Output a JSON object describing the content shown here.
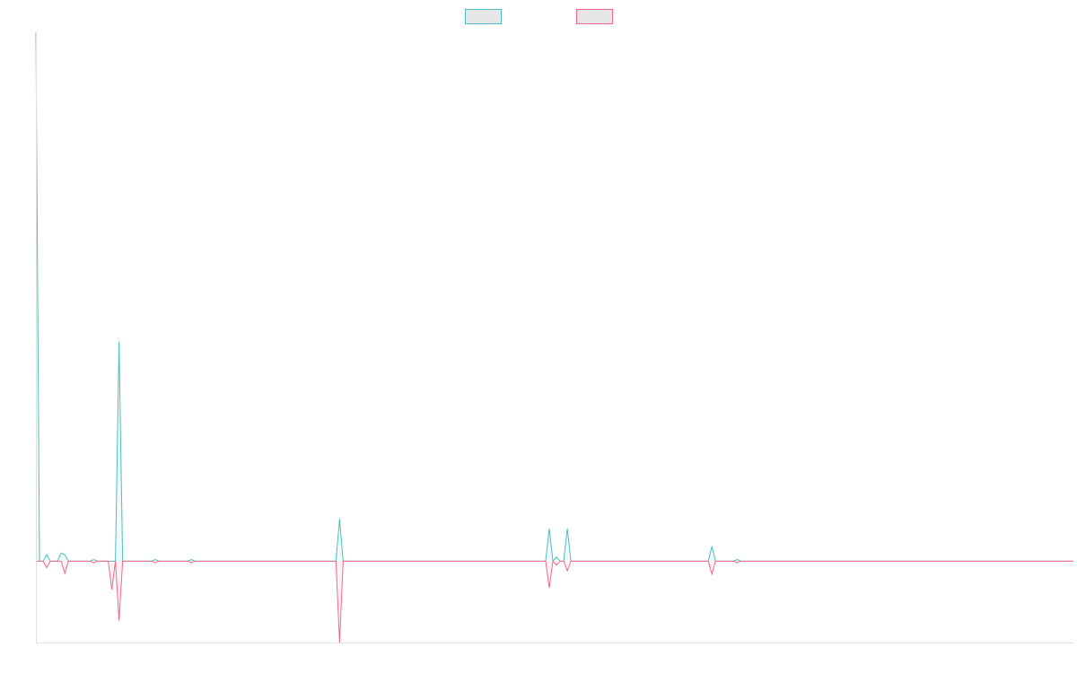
{
  "chart_data": {
    "type": "area",
    "title": "",
    "xlabel": "",
    "ylabel": "",
    "legend": {
      "position": "top-center"
    },
    "grid": false,
    "x": [
      0,
      1,
      2,
      3,
      4,
      5,
      6,
      7,
      8,
      9,
      10,
      11,
      12,
      13,
      14,
      15,
      16,
      17,
      18,
      19,
      20,
      21,
      22,
      23,
      24,
      25,
      26,
      27,
      28,
      29,
      30,
      31,
      32,
      33,
      34,
      35,
      36,
      37,
      38,
      39,
      40,
      41,
      42,
      43,
      44,
      45,
      46,
      47,
      48,
      49,
      50,
      51,
      52,
      53,
      54,
      55,
      56,
      57,
      58,
      59,
      60,
      61,
      62,
      63,
      64,
      65,
      66,
      67,
      68,
      69,
      70,
      71,
      72,
      73,
      74,
      75,
      76,
      77,
      78,
      79,
      80,
      81,
      82,
      83,
      84,
      85,
      86,
      87,
      88,
      89,
      90,
      91,
      92,
      93,
      94,
      95,
      96,
      97,
      98,
      99,
      100,
      101,
      102,
      103,
      104,
      105,
      106,
      107,
      108,
      109,
      110,
      111,
      112,
      113,
      114,
      115,
      116,
      117,
      118,
      119,
      120,
      121,
      122,
      123,
      124,
      125,
      126,
      127,
      128,
      129,
      130,
      131,
      132,
      133,
      134,
      135,
      136,
      137,
      138,
      139,
      140,
      141,
      142,
      143,
      144,
      145,
      146,
      147,
      148,
      149,
      150,
      151,
      152,
      153,
      154,
      155,
      156,
      157,
      158,
      159,
      160,
      161,
      162,
      163,
      164,
      165,
      166,
      167,
      168,
      169,
      170,
      171,
      172,
      173,
      174,
      175,
      176,
      177,
      178,
      179,
      180,
      181,
      182,
      183,
      184,
      185,
      186,
      187,
      188,
      189,
      190,
      191,
      192,
      193,
      194,
      195,
      196,
      197,
      198,
      199,
      200,
      201,
      202,
      203,
      204,
      205,
      206,
      207,
      208,
      209,
      210,
      211,
      212,
      213,
      214,
      215,
      216,
      217,
      218,
      219,
      220,
      221,
      222,
      223,
      224,
      225,
      226,
      227,
      228,
      229,
      230,
      231,
      232,
      233,
      234,
      235,
      236,
      237,
      238,
      239,
      240,
      241,
      242,
      243,
      244,
      245,
      246,
      247,
      248,
      249,
      250,
      251,
      252,
      253,
      254,
      255,
      256,
      257,
      258,
      259,
      260,
      261,
      262,
      263,
      264,
      265,
      266,
      267,
      268,
      269,
      270,
      271,
      272,
      273,
      274,
      275,
      276,
      277,
      278,
      279,
      280,
      281,
      282,
      283,
      284,
      285,
      286,
      287
    ],
    "ylim": [
      -100,
      650
    ],
    "series": [
      {
        "name": "",
        "color": "#4bc0c0",
        "values": [
          650,
          0,
          0,
          8,
          0,
          0,
          0,
          10,
          8,
          0,
          0,
          0,
          0,
          0,
          0,
          0,
          2,
          0,
          0,
          0,
          0,
          0,
          0,
          270,
          0,
          0,
          0,
          0,
          0,
          0,
          0,
          0,
          0,
          2,
          0,
          0,
          0,
          0,
          0,
          0,
          0,
          0,
          0,
          2,
          0,
          0,
          0,
          0,
          0,
          0,
          0,
          0,
          0,
          0,
          0,
          0,
          0,
          0,
          0,
          0,
          0,
          0,
          0,
          0,
          0,
          0,
          0,
          0,
          0,
          0,
          0,
          0,
          0,
          0,
          0,
          0,
          0,
          0,
          0,
          0,
          0,
          0,
          0,
          0,
          52,
          0,
          0,
          0,
          0,
          0,
          0,
          0,
          0,
          0,
          0,
          0,
          0,
          0,
          0,
          0,
          0,
          0,
          0,
          0,
          0,
          0,
          0,
          0,
          0,
          0,
          0,
          0,
          0,
          0,
          0,
          0,
          0,
          0,
          0,
          0,
          0,
          0,
          0,
          0,
          0,
          0,
          0,
          0,
          0,
          0,
          0,
          0,
          0,
          0,
          0,
          0,
          0,
          0,
          0,
          0,
          0,
          0,
          40,
          0,
          5,
          0,
          0,
          40,
          0,
          0,
          0,
          0,
          0,
          0,
          0,
          0,
          0,
          0,
          0,
          0,
          0,
          0,
          0,
          0,
          0,
          0,
          0,
          0,
          0,
          0,
          0,
          0,
          0,
          0,
          0,
          0,
          0,
          0,
          0,
          0,
          0,
          0,
          0,
          0,
          0,
          0,
          0,
          18,
          0,
          0,
          0,
          0,
          0,
          0,
          2,
          0,
          0,
          0,
          0,
          0,
          0,
          0,
          0,
          0,
          0,
          0,
          0,
          0,
          0,
          0,
          0,
          0,
          0,
          0,
          0,
          0,
          0,
          0,
          0,
          0,
          0,
          0,
          0,
          0,
          0,
          0,
          0,
          0,
          0,
          0,
          0,
          0,
          0,
          0,
          0,
          0,
          0,
          0,
          0,
          0,
          0,
          0,
          0,
          0,
          0,
          0,
          0,
          0,
          0,
          0,
          0,
          0,
          0,
          0,
          0,
          0,
          0,
          0,
          0,
          0,
          0,
          0,
          0,
          0,
          0,
          0,
          0,
          0,
          0,
          0,
          0,
          0,
          0,
          0,
          0,
          0,
          0,
          0,
          0,
          0,
          0,
          0,
          0,
          0,
          0,
          0,
          0,
          0
        ]
      },
      {
        "name": "",
        "color": "#ff6384",
        "values": [
          0,
          0,
          0,
          -8,
          0,
          0,
          0,
          0,
          -15,
          0,
          0,
          0,
          0,
          0,
          0,
          0,
          -2,
          0,
          0,
          0,
          0,
          -35,
          0,
          -73,
          0,
          0,
          0,
          0,
          0,
          0,
          0,
          0,
          0,
          -2,
          0,
          0,
          0,
          0,
          0,
          0,
          0,
          0,
          0,
          -2,
          0,
          0,
          0,
          0,
          0,
          0,
          0,
          0,
          0,
          0,
          0,
          0,
          0,
          0,
          0,
          0,
          0,
          0,
          0,
          0,
          0,
          0,
          0,
          0,
          0,
          0,
          0,
          0,
          0,
          0,
          0,
          0,
          0,
          0,
          0,
          0,
          0,
          0,
          0,
          0,
          -100,
          0,
          0,
          0,
          0,
          0,
          0,
          0,
          0,
          0,
          0,
          0,
          0,
          0,
          0,
          0,
          0,
          0,
          0,
          0,
          0,
          0,
          0,
          0,
          0,
          0,
          0,
          0,
          0,
          0,
          0,
          0,
          0,
          0,
          0,
          0,
          0,
          0,
          0,
          0,
          0,
          0,
          0,
          0,
          0,
          0,
          0,
          0,
          0,
          0,
          0,
          0,
          0,
          0,
          0,
          0,
          0,
          0,
          -33,
          0,
          -5,
          0,
          0,
          -12,
          0,
          0,
          0,
          0,
          0,
          0,
          0,
          0,
          0,
          0,
          0,
          0,
          0,
          0,
          0,
          0,
          0,
          0,
          0,
          0,
          0,
          0,
          0,
          0,
          0,
          0,
          0,
          0,
          0,
          0,
          0,
          0,
          0,
          0,
          0,
          0,
          0,
          0,
          0,
          -16,
          0,
          0,
          0,
          0,
          0,
          0,
          -2,
          0,
          0,
          0,
          0,
          0,
          0,
          0,
          0,
          0,
          0,
          0,
          0,
          0,
          0,
          0,
          0,
          0,
          0,
          0,
          0,
          0,
          0,
          0,
          0,
          0,
          0,
          0,
          0,
          0,
          0,
          0,
          0,
          0,
          0,
          0,
          0,
          0,
          0,
          0,
          0,
          0,
          0,
          0,
          0,
          0,
          0,
          0,
          0,
          0,
          0,
          0,
          0,
          0,
          0,
          0,
          0,
          0,
          0,
          0,
          0,
          0,
          0,
          0,
          0,
          0,
          0,
          0,
          0,
          0,
          0,
          0,
          0,
          0,
          0,
          0,
          0,
          0,
          0,
          0,
          0,
          0,
          0,
          0,
          0,
          0,
          0,
          0,
          0,
          0,
          0,
          0,
          0,
          0
        ]
      }
    ]
  }
}
